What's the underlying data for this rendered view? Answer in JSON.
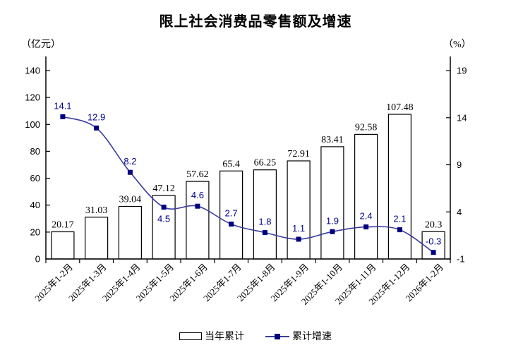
{
  "title": "限上社会消费品零售额及增速",
  "legend": {
    "bar_label": "当年累计",
    "line_label": "累计增速"
  },
  "colors": {
    "background": "#ffffff",
    "axis": "#000000",
    "bar_fill": "#ffffff",
    "bar_border": "#000000",
    "line": "#3c3c9e",
    "marker": "#000080",
    "line_label": "#00008b",
    "text": "#000000"
  },
  "chart_data": {
    "type": "bar",
    "title": "限上社会消费品零售额及增速",
    "categories": [
      "2025年1-2月",
      "2025年1-3月",
      "2025年1-4月",
      "2025年1-5月",
      "2025年1-6月",
      "2025年1-7月",
      "2025年1-8月",
      "2025年1-9月",
      "2025年1-10月",
      "2025年1-11月",
      "2025年1-12月",
      "2026年1-2月"
    ],
    "series": [
      {
        "name": "当年累计",
        "type": "bar",
        "axis": "left",
        "values": [
          20.17,
          31.03,
          39.04,
          47.12,
          57.62,
          65.4,
          66.25,
          72.91,
          83.41,
          92.58,
          107.48,
          20.3
        ]
      },
      {
        "name": "累计增速",
        "type": "line",
        "axis": "right",
        "values": [
          14.1,
          12.9,
          8.2,
          4.5,
          4.6,
          2.7,
          1.8,
          1.1,
          1.9,
          2.4,
          2.1,
          -0.3
        ]
      }
    ],
    "left_axis": {
      "unit": "（亿元）",
      "range": [
        0,
        140
      ],
      "ticks": [
        0,
        20,
        40,
        60,
        80,
        100,
        120,
        140
      ]
    },
    "right_axis": {
      "unit": "（%）",
      "range": [
        -1,
        19
      ],
      "ticks": [
        -1,
        4,
        9,
        14,
        19
      ]
    },
    "line_label_below_indices": [
      3
    ],
    "grid": false,
    "legend_position": "bottom"
  }
}
